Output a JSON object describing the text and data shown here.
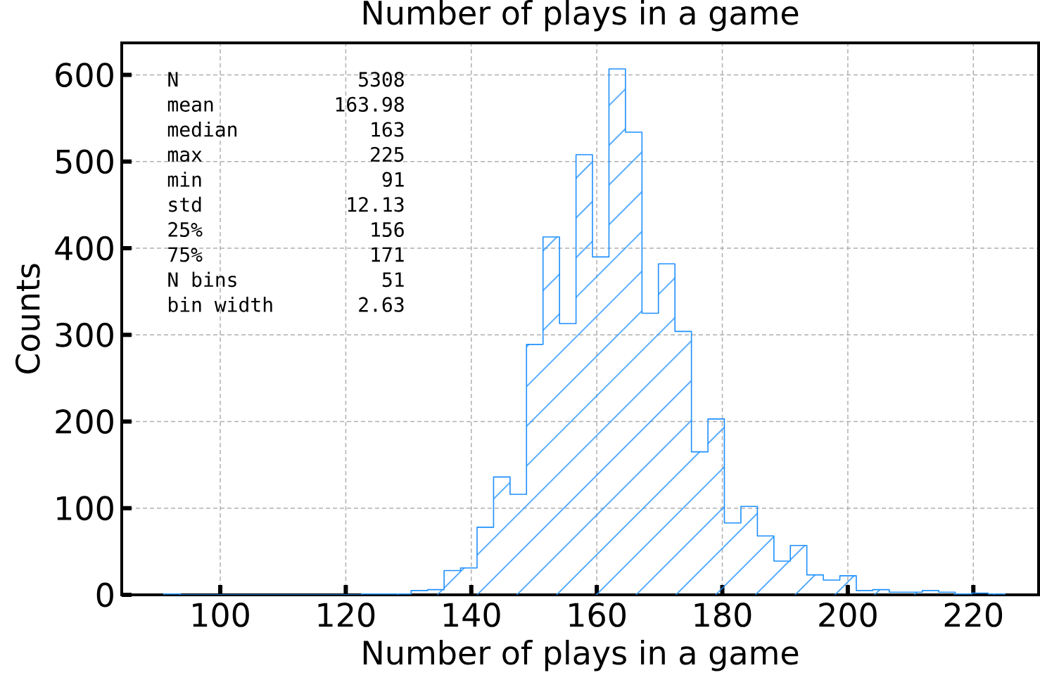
{
  "chart_data": {
    "type": "histogram",
    "title": "Number of plays in a game",
    "xlabel": "Number of plays in a game",
    "ylabel": "Counts",
    "color": "#1e90ff",
    "bins": [
      91,
      93.63,
      96.25,
      98.88,
      101.51,
      104.14,
      106.76,
      109.39,
      112.02,
      114.65,
      117.27,
      119.9,
      122.53,
      125.16,
      127.78,
      130.41,
      133.04,
      135.67,
      138.29,
      140.92,
      143.55,
      146.18,
      148.8,
      151.43,
      154.06,
      156.69,
      159.31,
      161.94,
      164.57,
      167.2,
      169.82,
      172.45,
      175.08,
      177.71,
      180.33,
      182.96,
      185.59,
      188.22,
      190.84,
      193.47,
      196.1,
      198.73,
      201.35,
      203.98,
      206.61,
      209.24,
      211.86,
      214.49,
      217.12,
      219.75,
      222.37,
      225
    ],
    "values": [
      1,
      0,
      0,
      0,
      0,
      0,
      0,
      0,
      0,
      0,
      0,
      0,
      1,
      1,
      1,
      5,
      6,
      28,
      31,
      78,
      136,
      116,
      289,
      413,
      313,
      508,
      390,
      607,
      534,
      325,
      382,
      304,
      165,
      203,
      83,
      102,
      68,
      39,
      57,
      23,
      17,
      22,
      5,
      6,
      3,
      3,
      5,
      3,
      1,
      2,
      1
    ],
    "xlim": [
      84.3,
      230.4
    ],
    "ylim": [
      0,
      637
    ],
    "xticks": [
      100,
      120,
      140,
      160,
      180,
      200,
      220
    ],
    "yticks": [
      0,
      100,
      200,
      300,
      400,
      500,
      600
    ],
    "grid": true,
    "annotations": [
      "N",
      "5308",
      "mean",
      "163.98",
      "median",
      "163",
      "max",
      "225",
      "min",
      "91",
      "std",
      "12.13",
      "25%",
      "156",
      "75%",
      "171",
      "N bins",
      "51",
      "bin width",
      "2.63"
    ]
  }
}
